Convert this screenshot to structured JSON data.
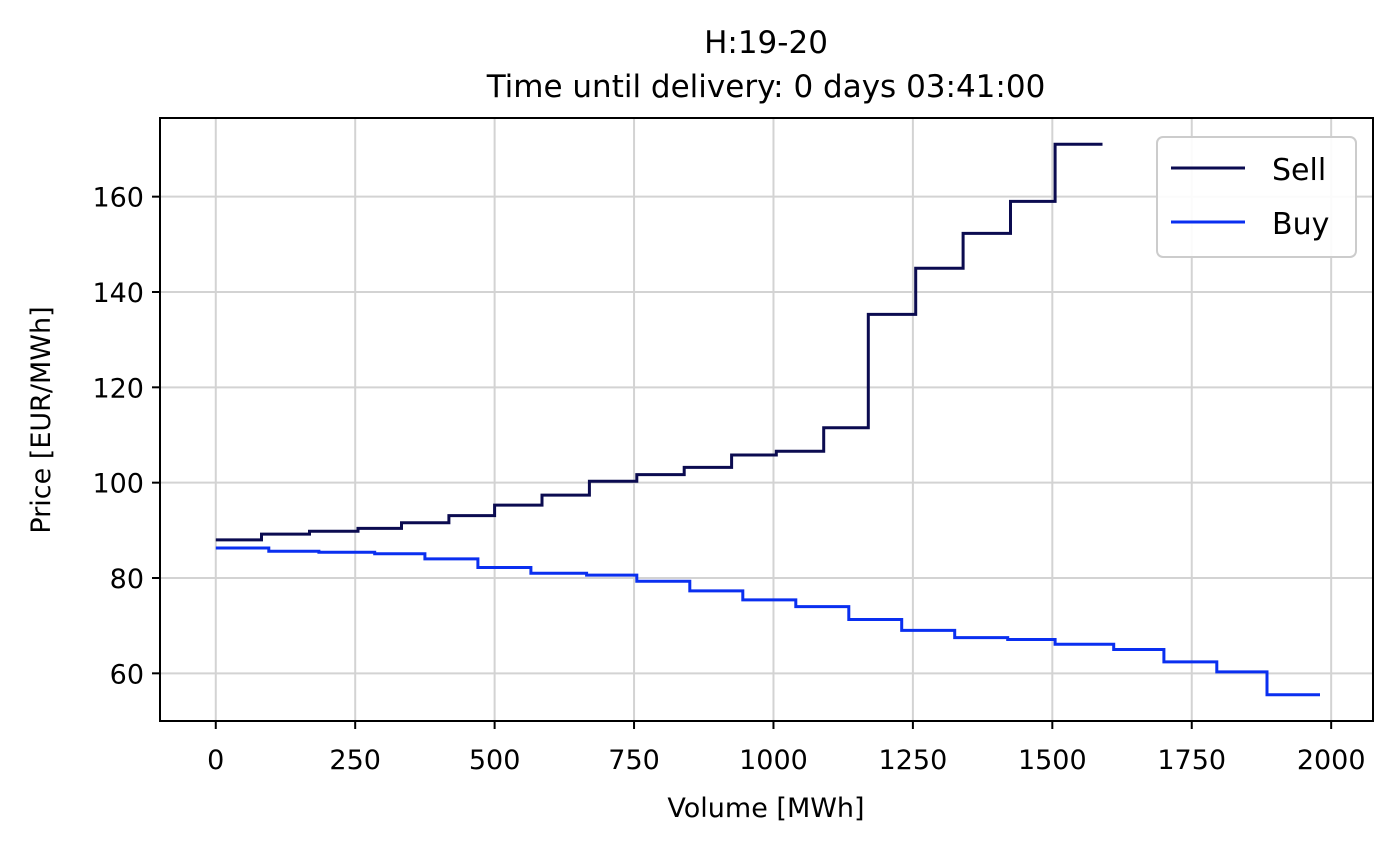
{
  "chart_data": {
    "type": "line",
    "title": "H:19-20",
    "subtitle": "Time until delivery: 0 days 03:41:00",
    "xlabel": "Volume [MWh]",
    "ylabel": "Price [EUR/MWh]",
    "xlim": [
      -100,
      2075
    ],
    "ylim": [
      50,
      176.5
    ],
    "xticks": [
      0,
      250,
      500,
      750,
      1000,
      1250,
      1500,
      1750,
      2000
    ],
    "yticks": [
      60,
      80,
      100,
      120,
      140,
      160
    ],
    "grid": true,
    "legend_position": "top-right",
    "step": "post",
    "series": [
      {
        "name": "Sell",
        "color": "#0b0b50",
        "x": [
          0,
          82,
          168,
          255,
          333,
          418,
          500,
          585,
          670,
          755,
          840,
          925,
          1005,
          1090,
          1170,
          1255,
          1340,
          1425,
          1505,
          1590
        ],
        "y": [
          88.0,
          89.2,
          89.8,
          90.4,
          91.6,
          93.1,
          95.3,
          97.4,
          100.3,
          101.7,
          103.2,
          105.8,
          106.6,
          111.5,
          135.3,
          145.0,
          152.3,
          159.0,
          171.0,
          171.0
        ]
      },
      {
        "name": "Buy",
        "color": "#0a2ff0",
        "x": [
          0,
          95,
          185,
          285,
          375,
          470,
          565,
          665,
          755,
          850,
          945,
          1040,
          1135,
          1230,
          1325,
          1420,
          1505,
          1610,
          1700,
          1795,
          1885,
          1980
        ],
        "y": [
          86.3,
          85.6,
          85.4,
          85.1,
          84.0,
          82.2,
          81.0,
          80.6,
          79.3,
          77.3,
          75.4,
          74.0,
          71.3,
          69.0,
          67.5,
          67.1,
          66.1,
          65.0,
          62.4,
          60.3,
          55.5,
          55.5
        ]
      }
    ]
  }
}
